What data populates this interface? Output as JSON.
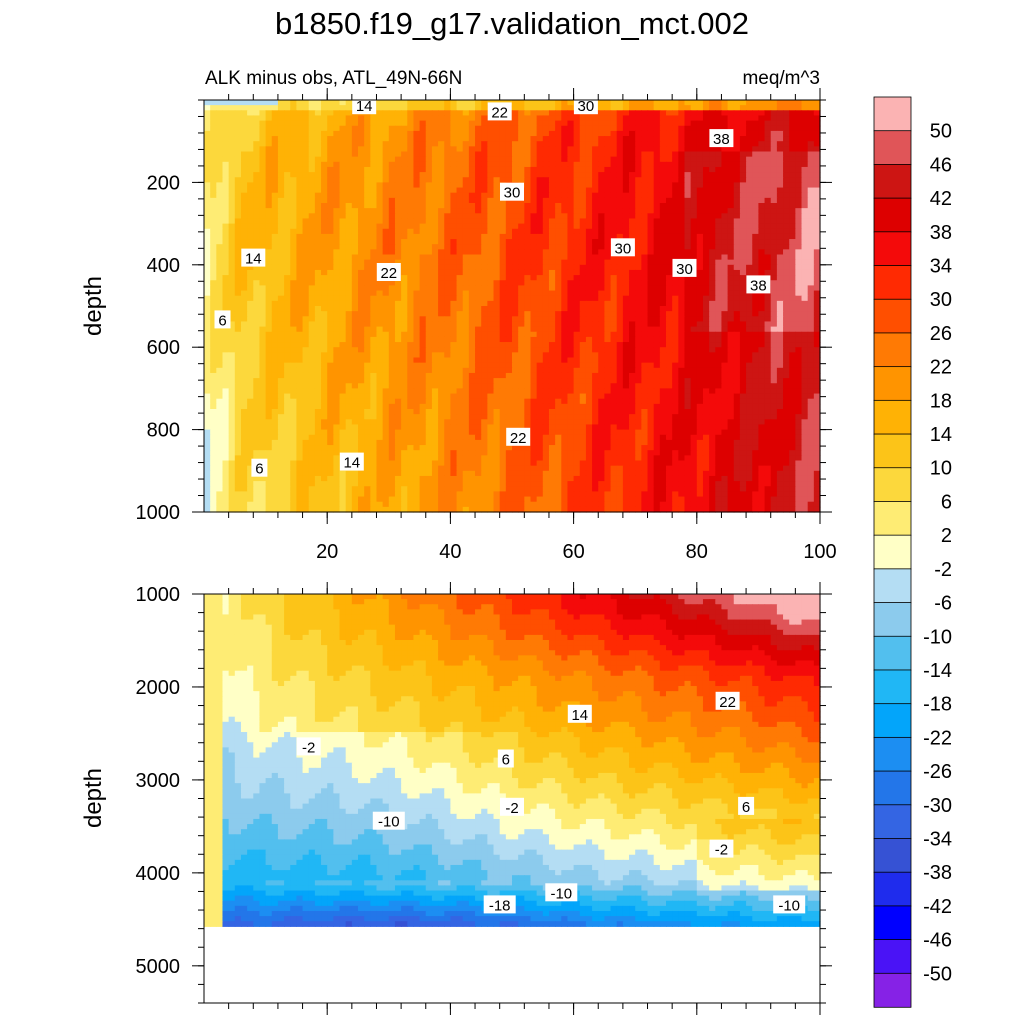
{
  "title": "b1850.f19_g17.validation_mct.002",
  "chart_data": [
    {
      "type": "heatmap",
      "subtype": "filled-contour",
      "panel": "upper",
      "title_left": "ALK minus obs, ATL_49N-66N",
      "title_right": "meq/m^3",
      "ylabel": "depth",
      "xlim": [
        0,
        100
      ],
      "ylim": [
        1000,
        0
      ],
      "x_ticks": [
        20,
        40,
        60,
        80,
        100
      ],
      "y_ticks": [
        200,
        400,
        600,
        800,
        1000
      ],
      "contour_labels": [
        {
          "text": "14",
          "x": 26,
          "y": 15
        },
        {
          "text": "22",
          "x": 48,
          "y": 30
        },
        {
          "text": "30",
          "x": 62,
          "y": 15
        },
        {
          "text": "38",
          "x": 84,
          "y": 95
        },
        {
          "text": "30",
          "x": 50,
          "y": 225
        },
        {
          "text": "14",
          "x": 8,
          "y": 385
        },
        {
          "text": "22",
          "x": 30,
          "y": 420
        },
        {
          "text": "30",
          "x": 68,
          "y": 360
        },
        {
          "text": "30",
          "x": 78,
          "y": 410
        },
        {
          "text": "38",
          "x": 90,
          "y": 450
        },
        {
          "text": "6",
          "x": 3,
          "y": 535
        },
        {
          "text": "22",
          "x": 51,
          "y": 820
        },
        {
          "text": "6",
          "x": 9,
          "y": 895
        },
        {
          "text": "14",
          "x": 24,
          "y": 880
        }
      ]
    },
    {
      "type": "heatmap",
      "subtype": "filled-contour",
      "panel": "lower",
      "ylabel": "depth",
      "xlim": [
        0,
        100
      ],
      "ylim": [
        5400,
        1000
      ],
      "y_ticks": [
        1000,
        2000,
        3000,
        4000,
        5000
      ],
      "contour_labels": [
        {
          "text": "22",
          "x": 85,
          "y": 2160
        },
        {
          "text": "14",
          "x": 61,
          "y": 2300
        },
        {
          "text": "-2",
          "x": 17,
          "y": 2650
        },
        {
          "text": "6",
          "x": 49,
          "y": 2780
        },
        {
          "text": "-2",
          "x": 50,
          "y": 3300
        },
        {
          "text": "6",
          "x": 88,
          "y": 3290
        },
        {
          "text": "-10",
          "x": 30,
          "y": 3450
        },
        {
          "text": "-2",
          "x": 84,
          "y": 3750
        },
        {
          "text": "-10",
          "x": 58,
          "y": 4220
        },
        {
          "text": "-18",
          "x": 48,
          "y": 4350
        },
        {
          "text": "-10",
          "x": 95,
          "y": 4350
        }
      ],
      "missing_below_depth": 4600
    }
  ],
  "colorbar": {
    "levels": [
      "50",
      "46",
      "42",
      "38",
      "34",
      "30",
      "26",
      "22",
      "18",
      "14",
      "10",
      "6",
      "2",
      "-2",
      "-6",
      "-10",
      "-14",
      "-18",
      "-22",
      "-26",
      "-30",
      "-34",
      "-38",
      "-42",
      "-46",
      "-50"
    ],
    "colors": [
      "#fbb3b3",
      "#e05558",
      "#cd1513",
      "#dd0000",
      "#f40a0a",
      "#ff2a02",
      "#ff4f00",
      "#ff7a04",
      "#ff9400",
      "#ffb205",
      "#fcc418",
      "#fcd83c",
      "#feec74",
      "#ffffc6",
      "#b4ddf3",
      "#8ccbed",
      "#52bfee",
      "#20b7f5",
      "#03a5fa",
      "#1c8ef2",
      "#2376e9",
      "#3465e3",
      "#3652d4",
      "#1f2ced",
      "#0000ff",
      "#4a13f6",
      "#8622e6"
    ]
  },
  "levels_low_to_high": [
    -50,
    -46,
    -42,
    -38,
    -34,
    -30,
    -26,
    -22,
    -18,
    -14,
    -10,
    -6,
    -2,
    2,
    6,
    10,
    14,
    18,
    22,
    26,
    30,
    34,
    38,
    42,
    46,
    50
  ]
}
